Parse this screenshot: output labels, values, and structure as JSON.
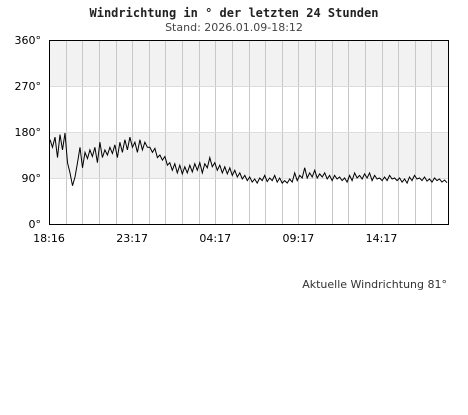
{
  "header": {
    "title": "Windrichtung in ° der letzten 24 Stunden",
    "stand": "Stand: 2026.01.09-18:12"
  },
  "footer": {
    "current": "Aktuelle Windrichtung 81°"
  },
  "chart_data": {
    "type": "line",
    "ylabel": "",
    "xlabel": "",
    "ylim": [
      0,
      360
    ],
    "y_ticks": [
      "0°",
      "90°",
      "180°",
      "270°",
      "360°"
    ],
    "x_ticks": [
      "18:16",
      "23:17",
      "04:17",
      "09:17",
      "14:17"
    ],
    "bands": [
      [
        90,
        180
      ],
      [
        270,
        360
      ]
    ],
    "grid": "vertical lines hourly",
    "series": [
      {
        "values": [
          165,
          150,
          170,
          130,
          175,
          145,
          178,
          120,
          100,
          75,
          92,
          120,
          150,
          110,
          140,
          128,
          145,
          132,
          150,
          120,
          160,
          130,
          145,
          135,
          150,
          138,
          155,
          130,
          160,
          140,
          165,
          145,
          170,
          150,
          160,
          140,
          165,
          145,
          160,
          150,
          150,
          140,
          148,
          130,
          135,
          125,
          132,
          115,
          120,
          105,
          118,
          100,
          115,
          98,
          112,
          100,
          115,
          102,
          118,
          105,
          120,
          100,
          118,
          110,
          130,
          112,
          120,
          105,
          115,
          100,
          112,
          98,
          110,
          95,
          105,
          92,
          100,
          88,
          95,
          85,
          92,
          82,
          88,
          80,
          90,
          85,
          95,
          83,
          90,
          85,
          95,
          82,
          90,
          80,
          85,
          80,
          88,
          82,
          100,
          85,
          95,
          90,
          110,
          90,
          100,
          92,
          105,
          90,
          98,
          92,
          100,
          88,
          95,
          85,
          95,
          88,
          92,
          85,
          90,
          82,
          95,
          85,
          100,
          90,
          95,
          88,
          98,
          90,
          100,
          85,
          95,
          88,
          90,
          85,
          92,
          85,
          95,
          88,
          90,
          85,
          90,
          82,
          88,
          80,
          92,
          85,
          95,
          88,
          90,
          85,
          92,
          84,
          88,
          82,
          90,
          85,
          88,
          82,
          86,
          81
        ]
      }
    ]
  }
}
